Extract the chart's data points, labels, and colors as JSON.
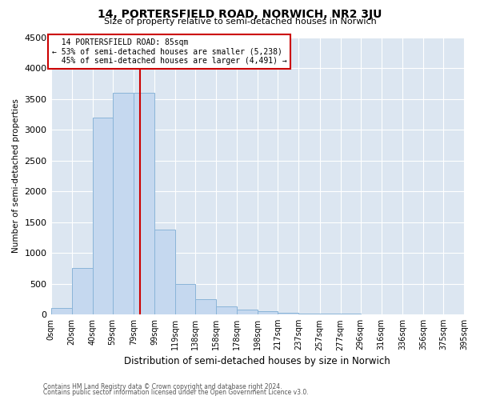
{
  "title": "14, PORTERSFIELD ROAD, NORWICH, NR2 3JU",
  "subtitle": "Size of property relative to semi-detached houses in Norwich",
  "xlabel": "Distribution of semi-detached houses by size in Norwich",
  "ylabel": "Number of semi-detached properties",
  "footnote1": "Contains HM Land Registry data © Crown copyright and database right 2024.",
  "footnote2": "Contains public sector information licensed under the Open Government Licence v3.0.",
  "property_size": 85,
  "property_label": "14 PORTERSFIELD ROAD: 85sqm",
  "pct_smaller": 53,
  "count_smaller": 5238,
  "pct_larger": 45,
  "count_larger": 4491,
  "bin_edges": [
    0,
    20,
    40,
    59,
    79,
    99,
    119,
    138,
    158,
    178,
    198,
    217,
    237,
    257,
    277,
    296,
    316,
    336,
    356,
    375,
    395
  ],
  "bin_labels": [
    "0sqm",
    "20sqm",
    "40sqm",
    "59sqm",
    "79sqm",
    "99sqm",
    "119sqm",
    "138sqm",
    "158sqm",
    "178sqm",
    "198sqm",
    "217sqm",
    "237sqm",
    "257sqm",
    "277sqm",
    "296sqm",
    "316sqm",
    "336sqm",
    "356sqm",
    "375sqm",
    "395sqm"
  ],
  "counts": [
    100,
    750,
    3200,
    3600,
    3600,
    1380,
    500,
    250,
    130,
    80,
    50,
    30,
    20,
    10,
    10,
    5,
    5,
    5,
    5,
    5
  ],
  "bar_color": "#c5d8ef",
  "bar_edge_color": "#8ab4d8",
  "vline_color": "#cc0000",
  "annotation_box_color": "#cc0000",
  "grid_color": "#dce6f1",
  "background_color": "#ffffff",
  "ylim": [
    0,
    4500
  ],
  "yticks": [
    0,
    500,
    1000,
    1500,
    2000,
    2500,
    3000,
    3500,
    4000,
    4500
  ]
}
